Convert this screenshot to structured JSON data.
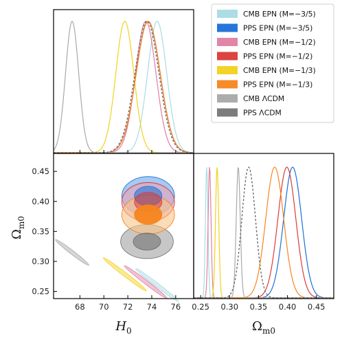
{
  "chart_data": {
    "type": "corner",
    "parameters": [
      "H_0",
      "Ω_m0"
    ],
    "x_axis_label": {
      "base": "H",
      "sub": "0"
    },
    "y_axis_label": {
      "base": "Ω",
      "sub": "m0"
    },
    "h0_ticks": [
      "68",
      "70",
      "72",
      "74",
      "76"
    ],
    "h0_range": [
      65.8,
      77.5
    ],
    "om_ticks": [
      "0.25",
      "0.30",
      "0.35",
      "0.40",
      "0.45"
    ],
    "om_range": [
      0.238,
      0.48
    ],
    "legend": {
      "placement": "top-right"
    },
    "series": [
      {
        "name": "CMB EPN (M=−3/5)",
        "color": "#a8dbe3",
        "style": "solid",
        "h0": {
          "mean": 74.45,
          "sd": 0.8
        },
        "om": {
          "mean": 0.2605,
          "sd": 0.0022
        },
        "corr": -0.96,
        "contour": {
          "type": "thin",
          "slope": -0.0153,
          "length": 3.6
        }
      },
      {
        "name": "PPS EPN (M=−3/5)",
        "color": "#1a6fd8",
        "style": "filled",
        "h0": {
          "mean": 73.7,
          "sd": 1.0
        },
        "om": {
          "mean": 0.409,
          "sd": 0.0155
        },
        "corr": 0.0,
        "contour": {
          "type": "ellipse",
          "h0_sd": 1.0,
          "om_sd": 0.0135
        }
      },
      {
        "name": "CMB EPN (M=−1/2)",
        "color": "#e07ea1",
        "style": "solid",
        "h0": {
          "mean": 73.5,
          "sd": 0.85
        },
        "om": {
          "mean": 0.2655,
          "sd": 0.0025
        },
        "corr": -0.96,
        "contour": {
          "type": "thin",
          "slope": -0.0153,
          "length": 3.6
        }
      },
      {
        "name": "PPS EPN (M=−1/2)",
        "color": "#d93a36",
        "style": "filled",
        "h0": {
          "mean": 73.7,
          "sd": 1.0
        },
        "om": {
          "mean": 0.399,
          "sd": 0.0155
        },
        "corr": 0.0,
        "contour": {
          "type": "ellipse",
          "h0_sd": 1.0,
          "om_sd": 0.0135
        }
      },
      {
        "name": "CMB EPN (M=−1/3)",
        "color": "#f2d11c",
        "style": "solid",
        "h0": {
          "mean": 71.75,
          "sd": 0.75
        },
        "om": {
          "mean": 0.2785,
          "sd": 0.0028
        },
        "corr": -0.96,
        "contour": {
          "type": "thin",
          "slope": -0.0153,
          "length": 3.6
        }
      },
      {
        "name": "PPS EPN (M=−1/3)",
        "color": "#f5851d",
        "style": "filled",
        "h0": {
          "mean": 73.7,
          "sd": 1.0
        },
        "om": {
          "mean": 0.378,
          "sd": 0.0155
        },
        "corr": 0.0,
        "contour": {
          "type": "ellipse",
          "h0_sd": 1.0,
          "om_sd": 0.0135
        }
      },
      {
        "name": "CMB ΛCDM",
        "color": "#a8a8a8",
        "style": "solid",
        "h0": {
          "mean": 67.35,
          "sd": 0.55
        },
        "om": {
          "mean": 0.315,
          "sd": 0.0035
        },
        "corr": -0.96,
        "contour": {
          "type": "thin",
          "slope": -0.0153,
          "length": 2.8
        }
      },
      {
        "name": "PPS ΛCDM",
        "color": "#6e6e6e",
        "style": "dashed",
        "h0": {
          "mean": 73.6,
          "sd": 1.0
        },
        "om": {
          "mean": 0.333,
          "sd": 0.0118
        },
        "corr": 0.0,
        "contour": {
          "type": "ellipse",
          "h0_sd": 1.0,
          "om_sd": 0.0118
        }
      }
    ]
  }
}
